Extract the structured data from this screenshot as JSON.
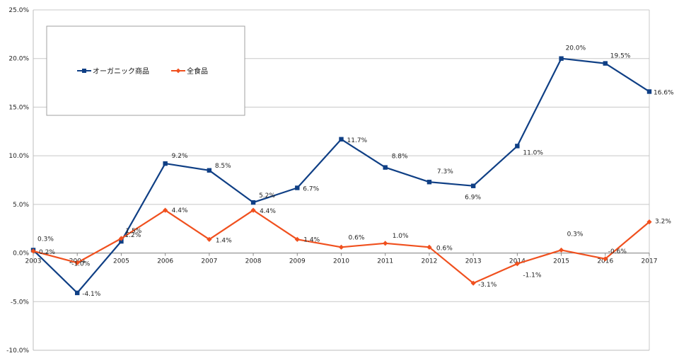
{
  "chart_data": {
    "type": "line",
    "x": [
      "2003",
      "2004",
      "2005",
      "2006",
      "2007",
      "2008",
      "2009",
      "2010",
      "2011",
      "2012",
      "2013",
      "2014",
      "2015",
      "2016",
      "2017"
    ],
    "ylim": [
      -0.1,
      0.25
    ],
    "y_ticks": [
      -0.1,
      -0.05,
      0.0,
      0.05,
      0.1,
      0.15,
      0.2,
      0.25
    ],
    "y_tick_labels": [
      "-10.0%",
      "-5.0%",
      "0.0%",
      "5.0%",
      "10.0%",
      "15.0%",
      "20.0%",
      "25.0%"
    ],
    "grid": true,
    "legend_position": "top-left",
    "series": [
      {
        "name": "オーガニック商品",
        "color": "#0f3f85",
        "marker": "square",
        "values": [
          0.003,
          -0.041,
          0.012,
          0.092,
          0.085,
          0.052,
          0.067,
          0.117,
          0.088,
          0.073,
          0.069,
          0.11,
          0.2,
          0.195,
          0.166
        ],
        "labels": [
          "0.3%",
          "-4.1%",
          "1.2%",
          "9.2%",
          "8.5%",
          "5.2%",
          "6.7%",
          "11.7%",
          "8.8%",
          "7.3%",
          "6.9%",
          "11.0%",
          "20.0%",
          "19.5%",
          "16.6%"
        ]
      },
      {
        "name": "全食品",
        "color": "#f0501e",
        "marker": "diamond",
        "values": [
          0.002,
          -0.01,
          0.015,
          0.044,
          0.014,
          0.044,
          0.014,
          0.006,
          0.01,
          0.006,
          -0.031,
          -0.011,
          0.003,
          -0.006,
          0.032
        ],
        "labels": [
          "0.2%",
          "-1.0%",
          "1.5%",
          "4.4%",
          "1.4%",
          "4.4%",
          "1.4%",
          "0.6%",
          "1.0%",
          "0.6%",
          "-3.1%",
          "-1.1%",
          "0.3%",
          "-0.6%",
          "3.2%"
        ]
      }
    ]
  }
}
